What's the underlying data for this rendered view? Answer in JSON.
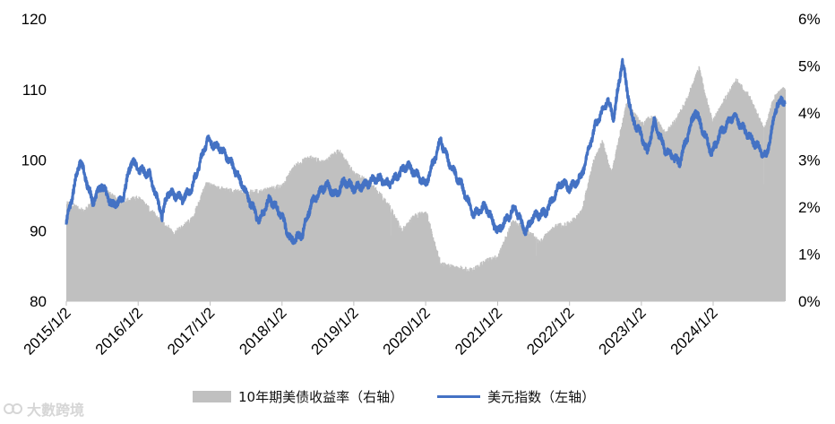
{
  "chart_data": {
    "type": "bar+line",
    "title": "",
    "dates": [
      "2015/1/2",
      "2016/1/2",
      "2017/1/2",
      "2018/1/2",
      "2019/1/2",
      "2020/1/2",
      "2021/1/2",
      "2022/1/2",
      "2023/1/2",
      "2024/1/2"
    ],
    "left_axis": {
      "ylim": [
        80,
        120
      ],
      "ticks": [
        "80",
        "90",
        "100",
        "110",
        "120"
      ]
    },
    "right_axis": {
      "ylim": [
        0,
        6
      ],
      "ticks": [
        "0%",
        "1%",
        "2%",
        "3%",
        "4%",
        "5%",
        "6%"
      ]
    },
    "series": [
      {
        "name": "10年期美债收益率（右轴）",
        "type": "bar",
        "axis": "right",
        "color": "#c0c0c0",
        "points": [
          [
            "2015/1/2",
            2.1
          ],
          [
            "2015/4/1",
            1.9
          ],
          [
            "2015/7/1",
            2.4
          ],
          [
            "2015/10/1",
            2.1
          ],
          [
            "2016/1/2",
            2.2
          ],
          [
            "2016/4/1",
            1.8
          ],
          [
            "2016/7/1",
            1.45
          ],
          [
            "2016/10/1",
            1.75
          ],
          [
            "2016/12/15",
            2.55
          ],
          [
            "2017/1/2",
            2.45
          ],
          [
            "2017/4/1",
            2.35
          ],
          [
            "2017/7/1",
            2.3
          ],
          [
            "2017/10/1",
            2.35
          ],
          [
            "2018/1/2",
            2.45
          ],
          [
            "2018/3/1",
            2.85
          ],
          [
            "2018/5/15",
            3.05
          ],
          [
            "2018/8/1",
            2.95
          ],
          [
            "2018/10/15",
            3.2
          ],
          [
            "2019/1/2",
            2.7
          ],
          [
            "2019/4/1",
            2.5
          ],
          [
            "2019/7/1",
            2.0
          ],
          [
            "2019/9/1",
            1.5
          ],
          [
            "2019/11/1",
            1.8
          ],
          [
            "2020/1/2",
            1.9
          ],
          [
            "2020/3/15",
            0.8
          ],
          [
            "2020/6/1",
            0.7
          ],
          [
            "2020/9/1",
            0.68
          ],
          [
            "2020/11/1",
            0.85
          ],
          [
            "2021/1/2",
            0.95
          ],
          [
            "2021/3/15",
            1.7
          ],
          [
            "2021/6/1",
            1.5
          ],
          [
            "2021/8/1",
            1.25
          ],
          [
            "2021/10/15",
            1.6
          ],
          [
            "2022/1/2",
            1.65
          ],
          [
            "2022/3/1",
            1.9
          ],
          [
            "2022/5/1",
            2.95
          ],
          [
            "2022/6/15",
            3.4
          ],
          [
            "2022/8/1",
            2.7
          ],
          [
            "2022/10/15",
            4.2
          ],
          [
            "2023/1/2",
            3.75
          ],
          [
            "2023/3/1",
            3.95
          ],
          [
            "2023/5/1",
            3.55
          ],
          [
            "2023/7/1",
            3.9
          ],
          [
            "2023/8/15",
            4.25
          ],
          [
            "2023/10/19",
            4.95
          ],
          [
            "2023/12/27",
            3.8
          ],
          [
            "2024/2/1",
            4.1
          ],
          [
            "2024/4/25",
            4.7
          ],
          [
            "2024/7/1",
            4.35
          ],
          [
            "2024/9/16",
            3.65
          ],
          [
            "2024/11/1",
            4.3
          ],
          [
            "2024/12/31",
            4.55
          ]
        ]
      },
      {
        "name": "美元指数（左轴）",
        "type": "line",
        "axis": "left",
        "color": "#4472c4",
        "points": [
          [
            "2015/1/2",
            91.0
          ],
          [
            "2015/3/13",
            100.0
          ],
          [
            "2015/4/15",
            97.0
          ],
          [
            "2015/5/15",
            94.0
          ],
          [
            "2015/7/1",
            96.5
          ],
          [
            "2015/8/24",
            93.5
          ],
          [
            "2015/10/15",
            94.5
          ],
          [
            "2015/12/1",
            100.0
          ],
          [
            "2016/1/2",
            98.7
          ],
          [
            "2016/3/1",
            98.0
          ],
          [
            "2016/5/3",
            92.0
          ],
          [
            "2016/6/1",
            95.5
          ],
          [
            "2016/8/15",
            94.5
          ],
          [
            "2016/10/1",
            96.0
          ],
          [
            "2016/12/20",
            103.0
          ],
          [
            "2017/1/2",
            102.5
          ],
          [
            "2017/3/1",
            101.5
          ],
          [
            "2017/5/1",
            99.0
          ],
          [
            "2017/7/1",
            95.5
          ],
          [
            "2017/9/8",
            91.3
          ],
          [
            "2017/11/1",
            94.5
          ],
          [
            "2018/1/2",
            92.0
          ],
          [
            "2018/2/16",
            88.5
          ],
          [
            "2018/4/15",
            89.5
          ],
          [
            "2018/6/1",
            94.0
          ],
          [
            "2018/8/15",
            96.5
          ],
          [
            "2018/10/1",
            95.0
          ],
          [
            "2018/11/15",
            97.0
          ],
          [
            "2019/1/2",
            96.0
          ],
          [
            "2019/3/1",
            96.5
          ],
          [
            "2019/5/1",
            97.5
          ],
          [
            "2019/7/1",
            96.5
          ],
          [
            "2019/9/30",
            99.3
          ],
          [
            "2019/12/1",
            97.5
          ],
          [
            "2020/1/2",
            96.5
          ],
          [
            "2020/3/19",
            102.8
          ],
          [
            "2020/5/1",
            99.5
          ],
          [
            "2020/7/1",
            96.5
          ],
          [
            "2020/9/1",
            92.2
          ],
          [
            "2020/11/1",
            93.5
          ],
          [
            "2021/1/2",
            89.8
          ],
          [
            "2021/3/31",
            93.3
          ],
          [
            "2021/5/25",
            89.7
          ],
          [
            "2021/7/1",
            92.0
          ],
          [
            "2021/9/1",
            92.5
          ],
          [
            "2021/11/24",
            96.9
          ],
          [
            "2022/1/2",
            96.0
          ],
          [
            "2022/3/1",
            97.5
          ],
          [
            "2022/5/12",
            104.8
          ],
          [
            "2022/7/14",
            108.5
          ],
          [
            "2022/8/15",
            106.0
          ],
          [
            "2022/9/27",
            114.1
          ],
          [
            "2022/11/15",
            106.0
          ],
          [
            "2023/1/2",
            103.5
          ],
          [
            "2023/2/1",
            101.0
          ],
          [
            "2023/3/8",
            105.5
          ],
          [
            "2023/5/1",
            101.5
          ],
          [
            "2023/7/14",
            99.6
          ],
          [
            "2023/10/3",
            107.0
          ],
          [
            "2023/12/27",
            100.9
          ],
          [
            "2024/2/1",
            103.5
          ],
          [
            "2024/4/16",
            106.4
          ],
          [
            "2024/6/1",
            104.5
          ],
          [
            "2024/9/27",
            100.4
          ],
          [
            "2024/11/22",
            108.0
          ],
          [
            "2024/12/31",
            108.5
          ]
        ]
      }
    ]
  },
  "legend": {
    "bar_label": "10年期美债收益率（右轴）",
    "line_label": "美元指数（左轴）"
  },
  "watermark": {
    "text": "大數跨境"
  }
}
